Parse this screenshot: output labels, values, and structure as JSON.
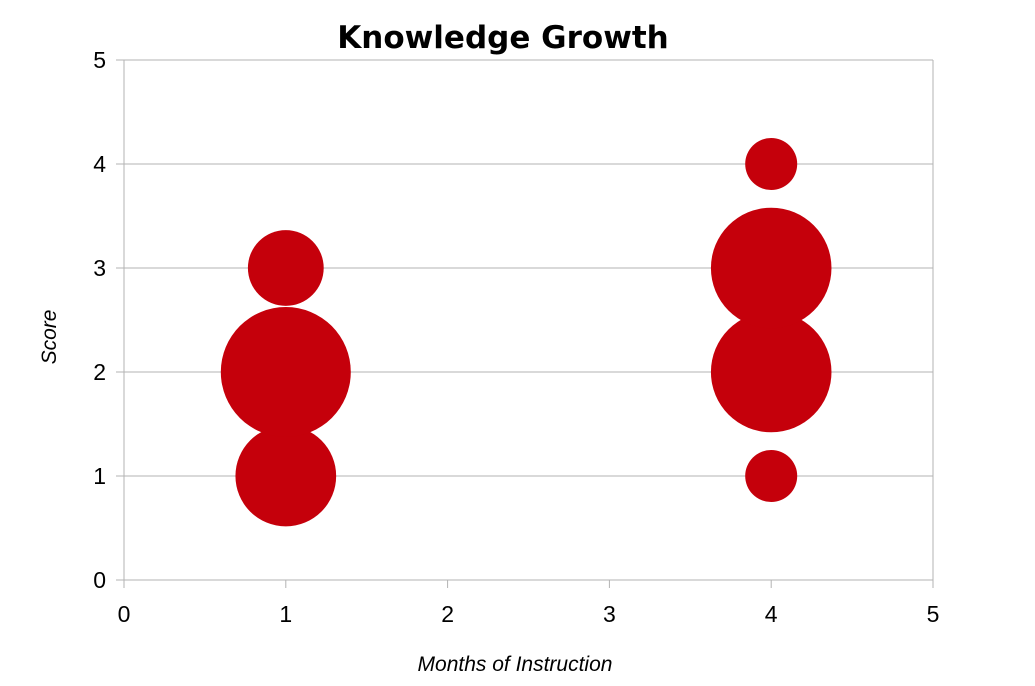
{
  "chart_data": {
    "type": "bubble",
    "title": "Knowledge Growth",
    "xlabel": "Months of Instruction",
    "ylabel": "Score",
    "xlim": [
      0,
      5
    ],
    "ylim": [
      0,
      5
    ],
    "xticks": [
      "0",
      "1",
      "2",
      "3",
      "4",
      "5"
    ],
    "yticks": [
      "0",
      "1",
      "2",
      "3",
      "4",
      "5"
    ],
    "grid": "horizontal",
    "legend": "none",
    "series": [
      {
        "color": "#c5000b",
        "points": [
          {
            "x": 1,
            "y": 1,
            "size": 3
          },
          {
            "x": 1,
            "y": 2,
            "size": 5
          },
          {
            "x": 1,
            "y": 3,
            "size": 1.7
          },
          {
            "x": 4,
            "y": 1,
            "size": 0.8
          },
          {
            "x": 4,
            "y": 2,
            "size": 4.3
          },
          {
            "x": 4,
            "y": 3,
            "size": 4.3
          },
          {
            "x": 4,
            "y": 4,
            "size": 0.8
          }
        ]
      }
    ]
  }
}
